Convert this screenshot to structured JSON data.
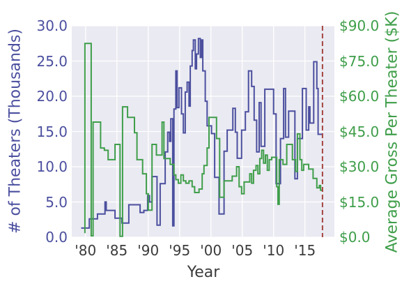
{
  "figure": {
    "background": "#ffffff",
    "plot_background": "#eaeaf2",
    "grid_color": "#ffffff"
  },
  "chart_data": {
    "type": "line",
    "step_interpolation": true,
    "title": "",
    "xlabel": "Year",
    "ylabel_left": "# of Theaters (Thousands)",
    "ylabel_right": "Average Gross Per Theater ($K)",
    "x_range": [
      1977.8,
      2019.7
    ],
    "ylim_left": [
      0,
      30
    ],
    "ylim_right": [
      0,
      90
    ],
    "grid": true,
    "legend": "none",
    "left_color": "#4b4f9e",
    "right_color": "#3f9e4a",
    "xtick_color": "#3b3b3b",
    "x_ticks": {
      "values": [
        1980,
        1985,
        1990,
        1995,
        2000,
        2005,
        2010,
        2015
      ],
      "labels": [
        "'80",
        "'85",
        "'90",
        "'95",
        "'00",
        "'05",
        "'10",
        "'15"
      ]
    },
    "left_ticks": {
      "values": [
        0,
        5,
        10,
        15,
        20,
        25,
        30
      ],
      "labels": [
        "0.0",
        "5.0",
        "10.0",
        "15.0",
        "20.0",
        "25.0",
        "30.0"
      ]
    },
    "right_ticks": {
      "values": [
        0,
        15,
        30,
        45,
        60,
        75,
        90
      ],
      "labels": [
        "$0.0",
        "$15.0",
        "$30.0",
        "$45.0",
        "$60.0",
        "$75.0",
        "$90.0"
      ]
    },
    "vline": {
      "x": 2017.8,
      "color": "#a5443f",
      "dash": [
        7,
        4
      ]
    },
    "series": [
      {
        "name": "# of Theaters (Thousands)",
        "axis": "left",
        "color": "#4b4f9e",
        "data": [
          [
            1979.3,
            1.3
          ],
          [
            1980.6,
            2.6
          ],
          [
            1981.9,
            3.3
          ],
          [
            1983.1,
            5.0
          ],
          [
            1983.3,
            3.8
          ],
          [
            1984.7,
            2.7
          ],
          [
            1985.8,
            2.0
          ],
          [
            1986.9,
            4.6
          ],
          [
            1988.7,
            3.5
          ],
          [
            1989.3,
            3.8
          ],
          [
            1989.9,
            5.9
          ],
          [
            1990.2,
            5.0
          ],
          [
            1990.6,
            8.6
          ],
          [
            1991.4,
            1.7
          ],
          [
            1991.9,
            7.6
          ],
          [
            1992.7,
            12.1
          ],
          [
            1993.1,
            14.9
          ],
          [
            1993.4,
            13.6
          ],
          [
            1993.6,
            16.8
          ],
          [
            1993.9,
            1.6
          ],
          [
            1994.1,
            18.2
          ],
          [
            1994.4,
            23.6
          ],
          [
            1994.6,
            18.4
          ],
          [
            1994.9,
            21.2
          ],
          [
            1995.3,
            17.5
          ],
          [
            1995.6,
            14.8
          ],
          [
            1995.9,
            20.6
          ],
          [
            1996.2,
            22.0
          ],
          [
            1996.5,
            18.6
          ],
          [
            1996.7,
            24.3
          ],
          [
            1997.0,
            26.5
          ],
          [
            1997.2,
            28.0
          ],
          [
            1997.5,
            23.9
          ],
          [
            1997.7,
            26.0
          ],
          [
            1998.0,
            28.2
          ],
          [
            1998.3,
            25.5
          ],
          [
            1998.5,
            28.0
          ],
          [
            1998.7,
            23.6
          ],
          [
            1999.1,
            19.3
          ],
          [
            1999.4,
            15.8
          ],
          [
            2000.1,
            14.7
          ],
          [
            2000.6,
            8.5
          ],
          [
            2001.3,
            3.3
          ],
          [
            2002.1,
            12.2
          ],
          [
            2002.6,
            15.2
          ],
          [
            2003.5,
            18.3
          ],
          [
            2003.9,
            14.9
          ],
          [
            2004.2,
            11.2
          ],
          [
            2004.9,
            15.2
          ],
          [
            2005.5,
            17.8
          ],
          [
            2006.0,
            23.6
          ],
          [
            2006.5,
            21.4
          ],
          [
            2006.9,
            16.6
          ],
          [
            2007.3,
            12.1
          ],
          [
            2007.7,
            19.1
          ],
          [
            2008.0,
            12.9
          ],
          [
            2008.6,
            21.0
          ],
          [
            2010.0,
            17.5
          ],
          [
            2010.4,
            7.6
          ],
          [
            2011.1,
            14.0
          ],
          [
            2011.6,
            21.1
          ],
          [
            2011.9,
            14.2
          ],
          [
            2012.4,
            17.9
          ],
          [
            2013.4,
            8.3
          ],
          [
            2013.8,
            14.0
          ],
          [
            2014.6,
            21.1
          ],
          [
            2015.2,
            15.2
          ],
          [
            2015.6,
            18.5
          ],
          [
            2015.8,
            16.2
          ],
          [
            2016.4,
            24.9
          ],
          [
            2016.9,
            21.1
          ],
          [
            2017.1,
            14.6
          ],
          [
            2017.7,
            14.6
          ]
        ]
      },
      {
        "name": "Average Gross Per Theater ($K)",
        "axis": "right",
        "color": "#3f9e4a",
        "data": [
          [
            1979.8,
            2.0
          ],
          [
            1979.9,
            82.5
          ],
          [
            1980.9,
            0.6
          ],
          [
            1981.2,
            49.0
          ],
          [
            1982.4,
            38.0
          ],
          [
            1983.0,
            37.0
          ],
          [
            1983.6,
            33.0
          ],
          [
            1984.7,
            39.5
          ],
          [
            1985.5,
            0.4
          ],
          [
            1985.9,
            55.5
          ],
          [
            1986.7,
            51.0
          ],
          [
            1987.8,
            44.5
          ],
          [
            1988.2,
            33.0
          ],
          [
            1989.1,
            27.0
          ],
          [
            1989.7,
            18.5
          ],
          [
            1990.0,
            11.5
          ],
          [
            1990.6,
            39.5
          ],
          [
            1991.3,
            35.0
          ],
          [
            1992.2,
            49.0
          ],
          [
            1992.5,
            33.5
          ],
          [
            1993.5,
            31.0
          ],
          [
            1994.1,
            26.5
          ],
          [
            1994.4,
            24.5
          ],
          [
            1994.8,
            23.0
          ],
          [
            1995.2,
            26.5
          ],
          [
            1995.6,
            24.0
          ],
          [
            1996.0,
            23.0
          ],
          [
            1996.5,
            24.0
          ],
          [
            1997.0,
            21.5
          ],
          [
            1997.4,
            19.0
          ],
          [
            1998.1,
            20.5
          ],
          [
            1998.6,
            27.0
          ],
          [
            1998.9,
            30.5
          ],
          [
            1999.4,
            38.0
          ],
          [
            1999.7,
            51.0
          ],
          [
            2000.9,
            42.0
          ],
          [
            2001.4,
            17.0
          ],
          [
            2002.1,
            24.0
          ],
          [
            2003.4,
            26.0
          ],
          [
            2004.1,
            30.0
          ],
          [
            2004.5,
            21.5
          ],
          [
            2004.9,
            18.5
          ],
          [
            2005.3,
            23.5
          ],
          [
            2006.2,
            27.0
          ],
          [
            2006.5,
            23.0
          ],
          [
            2006.8,
            28.5
          ],
          [
            2007.2,
            30.5
          ],
          [
            2007.5,
            27.0
          ],
          [
            2007.8,
            33.5
          ],
          [
            2008.1,
            37.0
          ],
          [
            2008.4,
            31.5
          ],
          [
            2008.7,
            35.0
          ],
          [
            2009.0,
            28.5
          ],
          [
            2009.3,
            33.0
          ],
          [
            2009.7,
            34.0
          ],
          [
            2010.5,
            21.5
          ],
          [
            2010.7,
            14.0
          ],
          [
            2010.9,
            33.0
          ],
          [
            2011.5,
            31.0
          ],
          [
            2012.1,
            39.5
          ],
          [
            2013.0,
            33.0
          ],
          [
            2013.5,
            28.0
          ],
          [
            2013.8,
            44.0
          ],
          [
            2014.2,
            33.0
          ],
          [
            2014.5,
            28.5
          ],
          [
            2014.8,
            31.0
          ],
          [
            2015.6,
            29.0
          ],
          [
            2016.3,
            25.0
          ],
          [
            2016.9,
            21.0
          ],
          [
            2017.3,
            22.0
          ],
          [
            2017.5,
            20.0
          ],
          [
            2017.7,
            20.0
          ]
        ]
      }
    ]
  }
}
